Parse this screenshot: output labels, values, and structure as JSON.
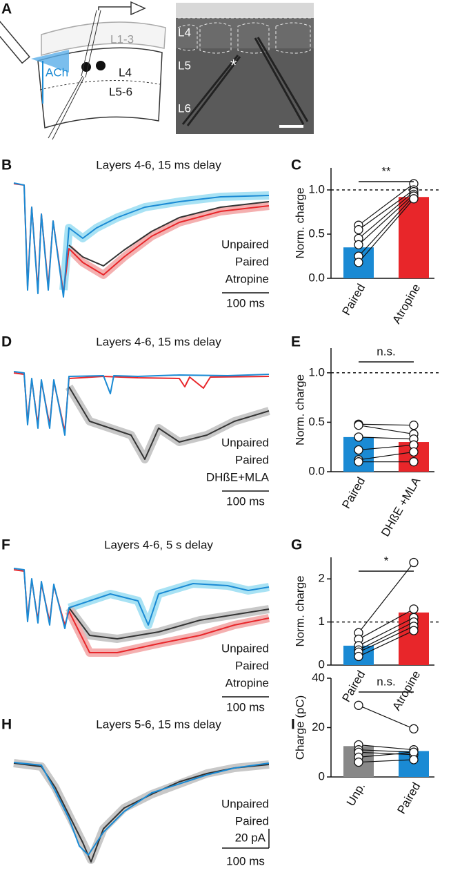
{
  "panel_labels": [
    "A",
    "B",
    "C",
    "D",
    "E",
    "F",
    "G",
    "H",
    "I"
  ],
  "schematic": {
    "labels": [
      "L1-3",
      "ACh",
      "L4",
      "L5-6"
    ]
  },
  "micrograph": {
    "labels": [
      "L4",
      "L5",
      "L6",
      "*"
    ]
  },
  "traces": [
    {
      "title": "Layers 4-6, 15 ms delay",
      "legend": [
        {
          "name": "Unpaired",
          "color": "#333333"
        },
        {
          "name": "Paired",
          "color": "#1a8ad4"
        },
        {
          "name": "Atropine",
          "color": "#e8262a"
        }
      ],
      "time_scale": "100 ms"
    },
    {
      "title": "Layers 4-6, 15 ms delay",
      "legend": [
        {
          "name": "Unpaired",
          "color": "#333333"
        },
        {
          "name": "Paired",
          "color": "#1a8ad4"
        },
        {
          "name": "DHßE+MLA",
          "color": "#e8262a"
        }
      ],
      "time_scale": "100 ms"
    },
    {
      "title": "Layers 4-6, 5 s delay",
      "legend": [
        {
          "name": "Unpaired",
          "color": "#333333"
        },
        {
          "name": "Paired",
          "color": "#1a8ad4"
        },
        {
          "name": "Atropine",
          "color": "#e8262a"
        }
      ],
      "time_scale": "100 ms"
    },
    {
      "title": "Layers 5-6, 15 ms delay",
      "legend": [
        {
          "name": "Unpaired",
          "color": "#333333"
        },
        {
          "name": "Paired",
          "color": "#1a8ad4"
        }
      ],
      "time_scale": "100 ms",
      "amplitude_scale": "20 pA"
    }
  ],
  "chart_data": [
    {
      "type": "bar",
      "ylabel": "Norm. charge",
      "categories": [
        "Paired",
        "Atropine"
      ],
      "colors": [
        "#1a8ad4",
        "#e8262a"
      ],
      "values": [
        0.35,
        0.92
      ],
      "paired_points": [
        [
          0.6,
          1.07
        ],
        [
          0.55,
          1.0
        ],
        [
          0.45,
          0.98
        ],
        [
          0.38,
          0.95
        ],
        [
          0.25,
          0.93
        ],
        [
          0.18,
          0.9
        ]
      ],
      "ylim": [
        0,
        1.25
      ],
      "yticks": [
        {
          "value": 0,
          "label": "0.0"
        },
        {
          "value": 0.5,
          "label": "0.5"
        },
        {
          "value": 1,
          "label": "1.0"
        }
      ],
      "reference_line": 1,
      "significance": "**"
    },
    {
      "type": "bar",
      "ylabel": "Norm. charge",
      "categories": [
        "Paired",
        "DHßE +MLA"
      ],
      "colors": [
        "#1a8ad4",
        "#e8262a"
      ],
      "values": [
        0.35,
        0.3
      ],
      "paired_points": [
        [
          0.48,
          0.47
        ],
        [
          0.47,
          0.38
        ],
        [
          0.35,
          0.33
        ],
        [
          0.22,
          0.27
        ],
        [
          0.12,
          0.2
        ],
        [
          0.1,
          0.1
        ]
      ],
      "ylim": [
        0,
        1.25
      ],
      "yticks": [
        {
          "value": 0,
          "label": "0.0"
        },
        {
          "value": 0.5,
          "label": "0.5"
        },
        {
          "value": 1,
          "label": "1.0"
        }
      ],
      "reference_line": 1,
      "significance": "n.s."
    },
    {
      "type": "bar",
      "ylabel": "Norm. charge",
      "categories": [
        "Paired",
        "Atropine"
      ],
      "colors": [
        "#1a8ad4",
        "#e8262a"
      ],
      "values": [
        0.45,
        1.22
      ],
      "paired_points": [
        [
          0.75,
          2.38
        ],
        [
          0.6,
          1.3
        ],
        [
          0.45,
          1.1
        ],
        [
          0.35,
          1.0
        ],
        [
          0.3,
          0.9
        ],
        [
          0.2,
          0.8
        ]
      ],
      "ylim": [
        0,
        2.5
      ],
      "yticks": [
        0,
        1,
        2
      ],
      "reference_line": 1,
      "significance": "*"
    },
    {
      "type": "bar",
      "ylabel": "Charge (pC)",
      "categories": [
        "Unp.",
        "Paired"
      ],
      "colors": [
        "#888888",
        "#1a8ad4"
      ],
      "values": [
        12.5,
        10.5
      ],
      "paired_points": [
        [
          29,
          19.5
        ],
        [
          13,
          11
        ],
        [
          11,
          10
        ],
        [
          10,
          9
        ],
        [
          8,
          10
        ],
        [
          6,
          7
        ]
      ],
      "ylim": [
        0,
        40
      ],
      "yticks": [
        0,
        20,
        40
      ],
      "significance": "n.s."
    }
  ]
}
